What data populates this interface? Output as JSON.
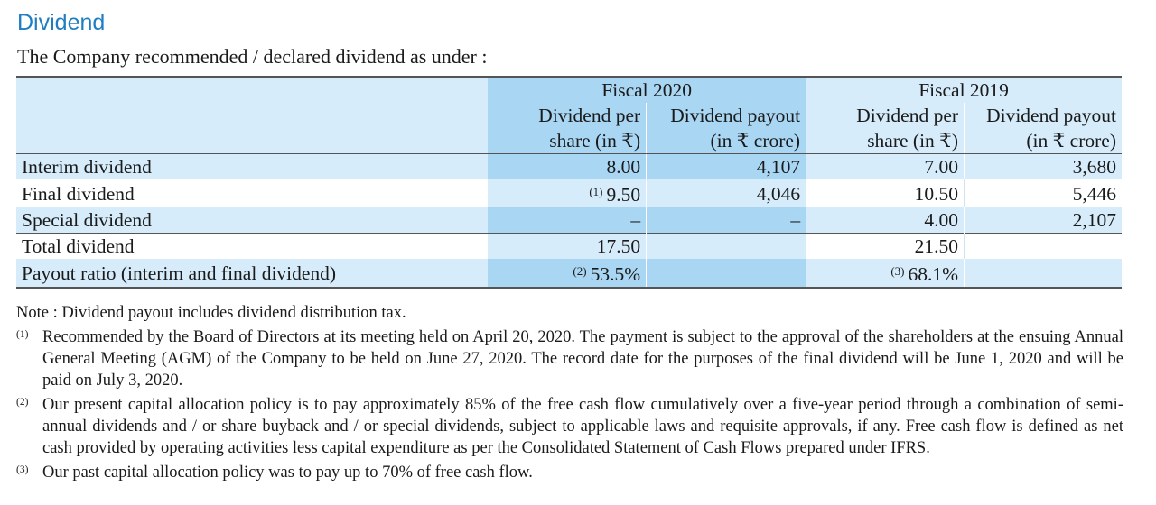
{
  "heading": "Dividend",
  "intro": "The Company recommended / declared dividend as under :",
  "table": {
    "groups": [
      "Fiscal 2020",
      "Fiscal 2019"
    ],
    "subheaders": [
      [
        "Dividend per",
        "share (in ₹)"
      ],
      [
        "Dividend payout",
        "(in ₹ crore)"
      ],
      [
        "Dividend per",
        "share (in ₹)"
      ],
      [
        "Dividend payout",
        "(in ₹ crore)"
      ]
    ],
    "rows": [
      {
        "label": "Interim dividend",
        "fy20_per_share_note": "",
        "fy20_per_share": "8.00",
        "fy20_payout": "4,107",
        "fy19_per_share_note": "",
        "fy19_per_share": "7.00",
        "fy19_payout": "3,680"
      },
      {
        "label": "Final dividend",
        "fy20_per_share_note": "(1)",
        "fy20_per_share": "9.50",
        "fy20_payout": "4,046",
        "fy19_per_share_note": "",
        "fy19_per_share": "10.50",
        "fy19_payout": "5,446"
      },
      {
        "label": "Special dividend",
        "fy20_per_share_note": "",
        "fy20_per_share": "–",
        "fy20_payout": "–",
        "fy19_per_share_note": "",
        "fy19_per_share": "4.00",
        "fy19_payout": "2,107"
      },
      {
        "label": "Total dividend",
        "fy20_per_share_note": "",
        "fy20_per_share": "17.50",
        "fy20_payout": "",
        "fy19_per_share_note": "",
        "fy19_per_share": "21.50",
        "fy19_payout": ""
      },
      {
        "label": "Payout ratio (interim and final dividend)",
        "fy20_per_share_note": "(2)",
        "fy20_per_share": "53.5%",
        "fy20_payout": "",
        "fy19_per_share_note": "(3)",
        "fy19_per_share": "68.1%",
        "fy19_payout": ""
      }
    ]
  },
  "notes": {
    "main": "Note : Dividend payout includes dividend distribution tax.",
    "footnotes": [
      {
        "mark": "(1)",
        "text": "Recommended by the Board of Directors at its meeting held on April 20, 2020. The payment is subject to the approval of the shareholders at the ensuing Annual General Meeting (AGM) of the Company to be held on June 27, 2020. The record date for the purposes of the final dividend will be June 1, 2020 and will be paid on July 3, 2020."
      },
      {
        "mark": "(2)",
        "text": "Our present capital allocation policy is to pay approximately 85% of the free cash flow cumulatively over a five-year period through a combination of semi-annual dividends and / or share buyback and / or special dividends, subject to applicable laws and requisite approvals, if any. Free cash flow is defined as net cash provided by operating activities less capital expenditure as per the Consolidated Statement of Cash Flows prepared under IFRS."
      },
      {
        "mark": "(3)",
        "text": "Our past capital allocation policy was to pay up to 70% of free cash flow."
      }
    ]
  }
}
